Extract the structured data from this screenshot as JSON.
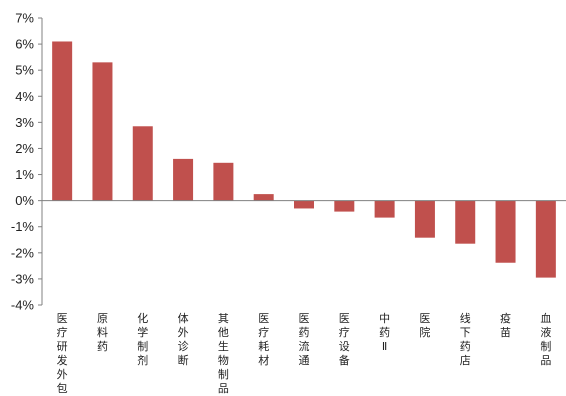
{
  "chart_data": {
    "type": "bar",
    "title": "",
    "xlabel": "",
    "ylabel": "",
    "categories": [
      "医疗研发外包",
      "原料药",
      "化学制剂",
      "体外诊断",
      "其他生物制品",
      "医疗耗材",
      "医药流通",
      "医疗设备",
      "中药Ⅱ",
      "医院",
      "线下药店",
      "疫苗",
      "血液制品"
    ],
    "values": [
      6.1,
      5.3,
      2.85,
      1.6,
      1.45,
      0.25,
      -0.3,
      -0.42,
      -0.65,
      -1.42,
      -1.65,
      -2.38,
      -2.95
    ],
    "ylim": [
      -4,
      7
    ],
    "yticks": [
      -4,
      -3,
      -2,
      -1,
      0,
      1,
      2,
      3,
      4,
      5,
      6,
      7
    ],
    "ytick_labels": [
      "-4%",
      "-3%",
      "-2%",
      "-1%",
      "0%",
      "1%",
      "2%",
      "3%",
      "4%",
      "5%",
      "6%",
      "7%"
    ],
    "bar_color": "#c0504d",
    "axis_color": "#808080",
    "grid": false,
    "legend": "none"
  }
}
